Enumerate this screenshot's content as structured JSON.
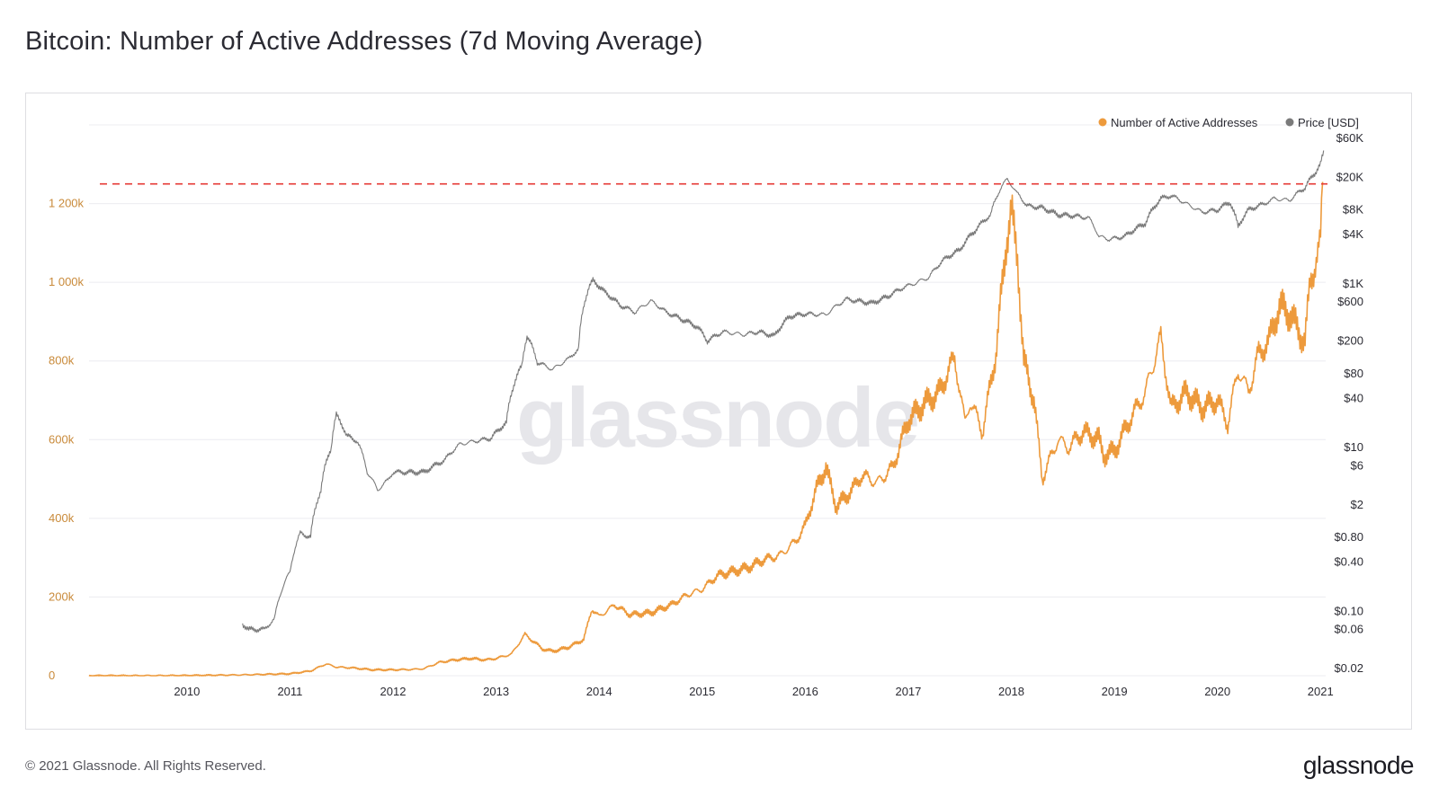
{
  "title": "Bitcoin: Number of Active Addresses (7d Moving Average)",
  "footer": "© 2021 Glassnode. All Rights Reserved.",
  "brand": "glassnode",
  "watermark": "glassnode",
  "colors": {
    "addresses": "#ed9a3c",
    "price": "#7a7a7a",
    "reference_line": "#e53935",
    "grid": "#ececf0"
  },
  "chart_data": {
    "type": "line",
    "title": "Bitcoin: Number of Active Addresses (7d Moving Average)",
    "legend_position": "top-right",
    "grid": true,
    "x_ticks": [
      "2010",
      "2011",
      "2012",
      "2013",
      "2014",
      "2015",
      "2016",
      "2017",
      "2018",
      "2019",
      "2020",
      "2021"
    ],
    "xlim": [
      2009.05,
      2021.05
    ],
    "y_left": {
      "ticks": [
        0,
        200000,
        400000,
        600000,
        800000,
        1000000,
        1200000
      ],
      "tick_labels": [
        "0",
        "200k",
        "400k",
        "600k",
        "800k",
        "1 000k",
        "1 200k"
      ],
      "ylim": [
        0,
        1400000
      ]
    },
    "y_right": {
      "scale": "log",
      "ticks": [
        0.02,
        0.06,
        0.1,
        0.4,
        0.8,
        2,
        6,
        10,
        40,
        80,
        200,
        600,
        1000,
        4000,
        8000,
        20000,
        60000
      ],
      "tick_labels": [
        "$0.02",
        "$0.06",
        "$0.10",
        "$0.40",
        "$0.80",
        "$2",
        "$6",
        "$10",
        "$40",
        "$80",
        "$200",
        "$600",
        "$1K",
        "$4K",
        "$8K",
        "$20K",
        "$60K"
      ],
      "ylim": [
        0.02,
        60000
      ]
    },
    "reference_line": {
      "series": "Number of Active Addresses",
      "value": 1250000,
      "style": "dashed"
    },
    "series": [
      {
        "name": "Number of Active Addresses",
        "axis": "left",
        "color": "#ed9a3c",
        "points": [
          [
            2009.05,
            0
          ],
          [
            2010.0,
            500
          ],
          [
            2010.5,
            2000
          ],
          [
            2011.0,
            5000
          ],
          [
            2011.2,
            12000
          ],
          [
            2011.35,
            30000
          ],
          [
            2011.45,
            22000
          ],
          [
            2011.6,
            20000
          ],
          [
            2011.8,
            15000
          ],
          [
            2012.0,
            15000
          ],
          [
            2012.2,
            16000
          ],
          [
            2012.3,
            18000
          ],
          [
            2012.45,
            34000
          ],
          [
            2012.6,
            40000
          ],
          [
            2012.75,
            44000
          ],
          [
            2012.9,
            40000
          ],
          [
            2013.0,
            44000
          ],
          [
            2013.15,
            55000
          ],
          [
            2013.28,
            105000
          ],
          [
            2013.45,
            68000
          ],
          [
            2013.55,
            62000
          ],
          [
            2013.7,
            72000
          ],
          [
            2013.85,
            92000
          ],
          [
            2013.93,
            170000
          ],
          [
            2014.0,
            150000
          ],
          [
            2014.15,
            180000
          ],
          [
            2014.3,
            155000
          ],
          [
            2014.5,
            160000
          ],
          [
            2014.7,
            180000
          ],
          [
            2014.85,
            205000
          ],
          [
            2015.0,
            220000
          ],
          [
            2015.15,
            255000
          ],
          [
            2015.3,
            265000
          ],
          [
            2015.45,
            275000
          ],
          [
            2015.6,
            295000
          ],
          [
            2015.75,
            305000
          ],
          [
            2015.9,
            340000
          ],
          [
            2016.0,
            380000
          ],
          [
            2016.1,
            470000
          ],
          [
            2016.2,
            530000
          ],
          [
            2016.3,
            430000
          ],
          [
            2016.45,
            470000
          ],
          [
            2016.55,
            510000
          ],
          [
            2016.7,
            490000
          ],
          [
            2016.85,
            530000
          ],
          [
            2017.0,
            650000
          ],
          [
            2017.15,
            690000
          ],
          [
            2017.3,
            720000
          ],
          [
            2017.45,
            810000
          ],
          [
            2017.55,
            640000
          ],
          [
            2017.6,
            700000
          ],
          [
            2017.72,
            620000
          ],
          [
            2017.85,
            820000
          ],
          [
            2017.95,
            1100000
          ],
          [
            2018.0,
            1180000
          ],
          [
            2018.06,
            1060000
          ],
          [
            2018.12,
            800000
          ],
          [
            2018.22,
            700000
          ],
          [
            2018.3,
            500000
          ],
          [
            2018.45,
            600000
          ],
          [
            2018.55,
            580000
          ],
          [
            2018.7,
            620000
          ],
          [
            2018.85,
            600000
          ],
          [
            2018.9,
            560000
          ],
          [
            2019.0,
            570000
          ],
          [
            2019.15,
            650000
          ],
          [
            2019.3,
            720000
          ],
          [
            2019.45,
            860000
          ],
          [
            2019.55,
            680000
          ],
          [
            2019.7,
            720000
          ],
          [
            2019.85,
            680000
          ],
          [
            2020.0,
            700000
          ],
          [
            2020.1,
            640000
          ],
          [
            2020.2,
            780000
          ],
          [
            2020.3,
            720000
          ],
          [
            2020.4,
            820000
          ],
          [
            2020.5,
            850000
          ],
          [
            2020.6,
            940000
          ],
          [
            2020.7,
            920000
          ],
          [
            2020.8,
            870000
          ],
          [
            2020.85,
            850000
          ],
          [
            2020.9,
            1000000
          ],
          [
            2020.95,
            1050000
          ],
          [
            2021.0,
            1100000
          ],
          [
            2021.02,
            1250000
          ]
        ]
      },
      {
        "name": "Price [USD]",
        "axis": "right",
        "color": "#7a7a7a",
        "points": [
          [
            2010.54,
            0.07
          ],
          [
            2010.6,
            0.06
          ],
          [
            2010.75,
            0.06
          ],
          [
            2010.85,
            0.08
          ],
          [
            2011.0,
            0.3
          ],
          [
            2011.1,
            0.9
          ],
          [
            2011.2,
            0.8
          ],
          [
            2011.3,
            3
          ],
          [
            2011.4,
            10
          ],
          [
            2011.45,
            25
          ],
          [
            2011.55,
            14
          ],
          [
            2011.65,
            12
          ],
          [
            2011.75,
            5
          ],
          [
            2011.85,
            3
          ],
          [
            2011.95,
            4
          ],
          [
            2012.0,
            5
          ],
          [
            2012.15,
            5
          ],
          [
            2012.3,
            5
          ],
          [
            2012.5,
            7
          ],
          [
            2012.65,
            11
          ],
          [
            2012.8,
            12
          ],
          [
            2012.95,
            13
          ],
          [
            2013.1,
            20
          ],
          [
            2013.25,
            100
          ],
          [
            2013.3,
            230
          ],
          [
            2013.4,
            110
          ],
          [
            2013.55,
            90
          ],
          [
            2013.7,
            120
          ],
          [
            2013.8,
            160
          ],
          [
            2013.9,
            900
          ],
          [
            2013.94,
            1100
          ],
          [
            2014.05,
            800
          ],
          [
            2014.2,
            550
          ],
          [
            2014.35,
            450
          ],
          [
            2014.5,
            620
          ],
          [
            2014.65,
            450
          ],
          [
            2014.8,
            370
          ],
          [
            2014.95,
            300
          ],
          [
            2015.05,
            200
          ],
          [
            2015.2,
            260
          ],
          [
            2015.4,
            240
          ],
          [
            2015.55,
            260
          ],
          [
            2015.7,
            230
          ],
          [
            2015.85,
            400
          ],
          [
            2016.0,
            430
          ],
          [
            2016.2,
            420
          ],
          [
            2016.4,
            650
          ],
          [
            2016.5,
            620
          ],
          [
            2016.65,
            580
          ],
          [
            2016.8,
            700
          ],
          [
            2016.95,
            900
          ],
          [
            2017.05,
            1000
          ],
          [
            2017.2,
            1200
          ],
          [
            2017.35,
            2000
          ],
          [
            2017.5,
            2600
          ],
          [
            2017.65,
            4500
          ],
          [
            2017.8,
            7000
          ],
          [
            2017.9,
            15000
          ],
          [
            2017.96,
            19000
          ],
          [
            2018.05,
            13000
          ],
          [
            2018.15,
            9000
          ],
          [
            2018.3,
            8500
          ],
          [
            2018.45,
            7000
          ],
          [
            2018.6,
            6800
          ],
          [
            2018.75,
            6400
          ],
          [
            2018.85,
            3800
          ],
          [
            2018.95,
            3500
          ],
          [
            2019.1,
            3800
          ],
          [
            2019.3,
            5500
          ],
          [
            2019.45,
            11000
          ],
          [
            2019.55,
            12000
          ],
          [
            2019.7,
            9500
          ],
          [
            2019.85,
            7500
          ],
          [
            2020.0,
            8000
          ],
          [
            2020.12,
            10000
          ],
          [
            2020.2,
            5000
          ],
          [
            2020.3,
            8000
          ],
          [
            2020.45,
            9500
          ],
          [
            2020.55,
            11000
          ],
          [
            2020.7,
            10500
          ],
          [
            2020.85,
            15000
          ],
          [
            2020.95,
            23000
          ],
          [
            2021.0,
            29000
          ],
          [
            2021.03,
            40000
          ]
        ]
      }
    ]
  },
  "legend": [
    {
      "label": "Number of Active Addresses",
      "color": "#ed9a3c"
    },
    {
      "label": "Price [USD]",
      "color": "#7a7a7a"
    }
  ]
}
